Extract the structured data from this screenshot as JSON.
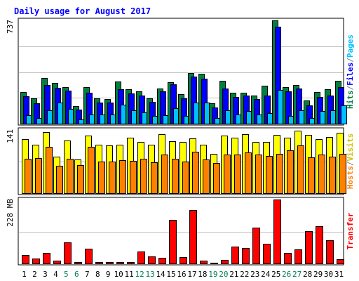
{
  "chart_data": {
    "type": "bar",
    "title": "Daily usage for August 2017",
    "categories": [
      "1",
      "2",
      "3",
      "4",
      "5",
      "6",
      "7",
      "8",
      "9",
      "10",
      "11",
      "12",
      "13",
      "14",
      "15",
      "16",
      "17",
      "18",
      "19",
      "20",
      "21",
      "22",
      "23",
      "24",
      "25",
      "26",
      "27",
      "28",
      "29",
      "30",
      "31"
    ],
    "weekend_days": [
      "5",
      "6",
      "12",
      "13",
      "19",
      "20",
      "26",
      "27"
    ],
    "panels": [
      {
        "name": "hits-files-pages",
        "side_label_parts": [
          "Hits",
          "/",
          "Files",
          "/",
          "Pages"
        ],
        "y_label": "737",
        "ymax": 737,
        "series": [
          {
            "name": "Hits",
            "color": "#008040",
            "values": [
              225,
              180,
              325,
              290,
              260,
              125,
              260,
              180,
              175,
              300,
              245,
              230,
              180,
              250,
              295,
              210,
              360,
              355,
              145,
              305,
              220,
              220,
              200,
              270,
              737,
              260,
              275,
              165,
              225,
              245,
              305
            ]
          },
          {
            "name": "Files",
            "color": "#0000ff",
            "values": [
              195,
              145,
              275,
              255,
              235,
              100,
              220,
              150,
              150,
              245,
              215,
              200,
              155,
              230,
              280,
              180,
              335,
              320,
              115,
              250,
              190,
              200,
              175,
              200,
              690,
              230,
              250,
              130,
              190,
              200,
              260
            ]
          },
          {
            "name": "Pages",
            "color": "#00c0ff",
            "values": [
              60,
              40,
              95,
              150,
              105,
              30,
              65,
              65,
              65,
              135,
              95,
              80,
              55,
              60,
              110,
              55,
              150,
              150,
              40,
              95,
              65,
              90,
              65,
              75,
              240,
              55,
              95,
              40,
              90,
              95,
              130
            ]
          }
        ]
      },
      {
        "name": "hosts-visits",
        "side_label_parts": [
          "Hosts",
          "/",
          "Visits"
        ],
        "y_label": "141",
        "ymax": 141,
        "series": [
          {
            "name": "Visits",
            "color": "#ffff00",
            "values": [
              120,
              108,
              136,
              82,
              118,
              75,
              128,
              108,
              106,
              108,
              124,
              114,
              108,
              132,
              116,
              114,
              122,
              108,
              88,
              128,
              124,
              132,
              114,
              114,
              130,
              124,
              139,
              130,
              120,
              126,
              134
            ]
          },
          {
            "name": "Hosts",
            "color": "#ff8000",
            "values": [
              76,
              78,
              104,
              61,
              77,
              62,
              104,
              71,
              70,
              74,
              72,
              76,
              69,
              86,
              76,
              71,
              92,
              75,
              67,
              86,
              86,
              91,
              86,
              83,
              88,
              95,
              107,
              80,
              86,
              81,
              88
            ]
          }
        ]
      },
      {
        "name": "transfer",
        "side_label_parts": [
          "Transfer"
        ],
        "y_label": "228 MB",
        "ymax": 228,
        "series": [
          {
            "name": "Transfer",
            "color": "#ff0000",
            "values": [
              30,
              18,
              38,
              10,
              75,
              4,
              53,
              4,
              5,
              6,
              5,
              43,
              25,
              20,
              155,
              23,
              190,
              9,
              3,
              12,
              60,
              55,
              128,
              70,
              228,
              38,
              50,
              116,
              132,
              83,
              15
            ]
          }
        ]
      }
    ],
    "colors": {
      "background": "#ffffff",
      "frame_bg": "#ffffff",
      "title": "#0000ff",
      "weekday_label": "#000000",
      "weekend_label": "#00805c",
      "grid": "#c0c0c0",
      "hits_label": "#008040",
      "files_label": "#0000ff",
      "pages_label": "#00c0ff",
      "hosts_label": "#ff8000",
      "visits_label": "#d0c000",
      "transfer_label": "#ff0000",
      "separator_label": "#808080"
    }
  }
}
